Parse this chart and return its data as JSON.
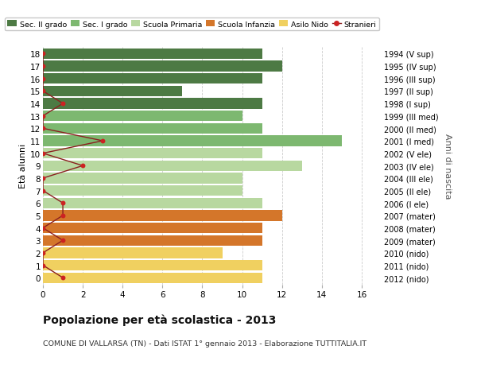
{
  "ages": [
    18,
    17,
    16,
    15,
    14,
    13,
    12,
    11,
    10,
    9,
    8,
    7,
    6,
    5,
    4,
    3,
    2,
    1,
    0
  ],
  "right_labels": [
    "1994 (V sup)",
    "1995 (IV sup)",
    "1996 (III sup)",
    "1997 (II sup)",
    "1998 (I sup)",
    "1999 (III med)",
    "2000 (II med)",
    "2001 (I med)",
    "2002 (V ele)",
    "2003 (IV ele)",
    "2004 (III ele)",
    "2005 (II ele)",
    "2006 (I ele)",
    "2007 (mater)",
    "2008 (mater)",
    "2009 (mater)",
    "2010 (nido)",
    "2011 (nido)",
    "2012 (nido)"
  ],
  "bar_values": [
    11,
    12,
    11,
    7,
    11,
    10,
    11,
    15,
    11,
    13,
    10,
    10,
    11,
    12,
    11,
    11,
    9,
    11,
    11
  ],
  "bar_colors": [
    "#4d7a44",
    "#4d7a44",
    "#4d7a44",
    "#4d7a44",
    "#4d7a44",
    "#7db870",
    "#7db870",
    "#7db870",
    "#b8d8a0",
    "#b8d8a0",
    "#b8d8a0",
    "#b8d8a0",
    "#b8d8a0",
    "#d4762a",
    "#d4762a",
    "#d4762a",
    "#f0d060",
    "#f0d060",
    "#f0d060"
  ],
  "stranieri_x": [
    0,
    0,
    0,
    0,
    1,
    0,
    0,
    3,
    0,
    2,
    0,
    0,
    1,
    1,
    0,
    1,
    0,
    0,
    1
  ],
  "xlim": [
    0,
    17
  ],
  "xticks": [
    0,
    2,
    4,
    6,
    8,
    10,
    12,
    14,
    16
  ],
  "title": "Popolazione per età scolastica - 2013",
  "subtitle": "COMUNE DI VALLARSA (TN) - Dati ISTAT 1° gennaio 2013 - Elaborazione TUTTITALIA.IT",
  "ylabel_left": "Età alunni",
  "ylabel_right": "Anni di nascita",
  "legend_labels": [
    "Sec. II grado",
    "Sec. I grado",
    "Scuola Primaria",
    "Scuola Infanzia",
    "Asilo Nido",
    "Stranieri"
  ],
  "legend_colors": [
    "#4d7a44",
    "#7db870",
    "#b8d8a0",
    "#d4762a",
    "#f0d060",
    "#cc2222"
  ],
  "bg_color": "#ffffff",
  "grid_color": "#cccccc",
  "stranieri_line_color": "#8b2020",
  "stranieri_dot_color": "#cc2222"
}
